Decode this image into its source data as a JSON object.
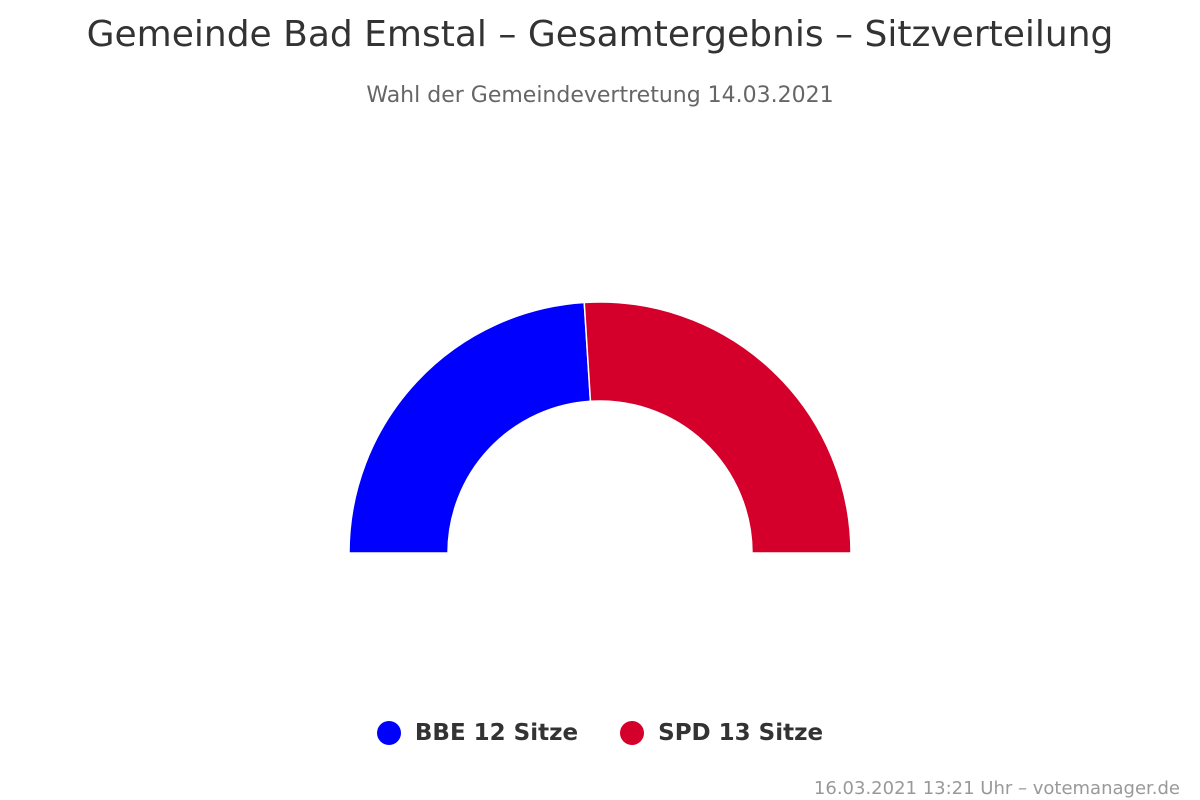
{
  "title": "Gemeinde Bad Emstal – Gesamtergebnis – Sitzverteilung",
  "subtitle": "Wahl der Gemeindevertretung 14.03.2021",
  "chart_data": {
    "type": "pie",
    "variant": "semicircle",
    "title": "Gemeinde Bad Emstal – Gesamtergebnis – Sitzverteilung",
    "subtitle": "Wahl der Gemeindevertretung 14.03.2021",
    "unit": "Sitze",
    "total": 25,
    "series": [
      {
        "name": "BBE",
        "value": 12,
        "color": "#0000ff"
      },
      {
        "name": "SPD",
        "value": 13,
        "color": "#d4002b"
      }
    ],
    "legend_position": "bottom-center"
  },
  "legend": [
    {
      "label": "BBE 12 Sitze",
      "color": "#0000ff"
    },
    {
      "label": "SPD 13 Sitze",
      "color": "#d4002b"
    }
  ],
  "credits": "16.03.2021 13:21 Uhr – votemanager.de"
}
